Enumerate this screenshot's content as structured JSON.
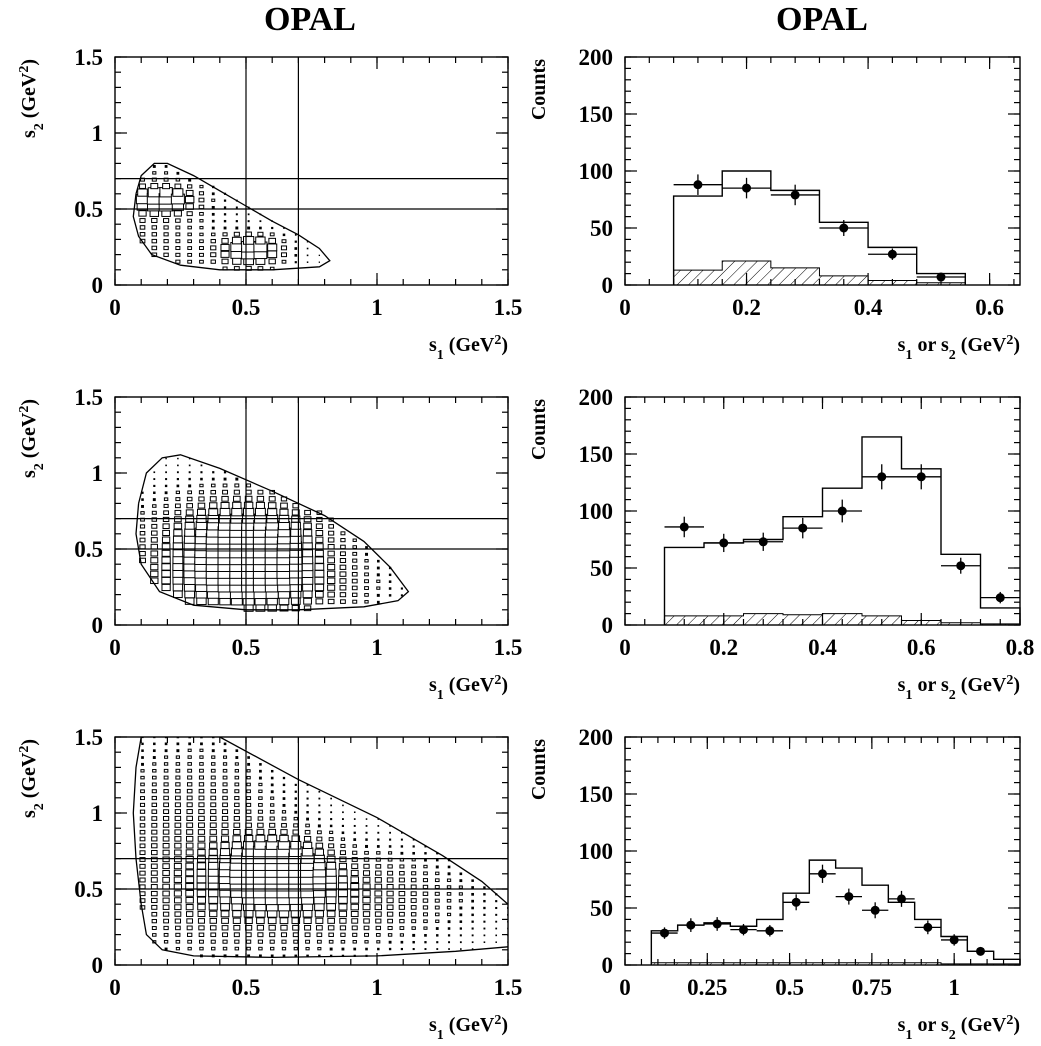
{
  "columns": [
    {
      "title": "OPAL"
    },
    {
      "title": "OPAL"
    }
  ],
  "chart_data": [
    {
      "type": "scatter",
      "subtype": "2d-box-histogram",
      "xlabel": {
        "base": "s",
        "sub": "1",
        "unit": "(GeV",
        "sup": "2",
        "close": ")"
      },
      "ylabel": {
        "base": "s",
        "sub": "2",
        "unit": "(GeV",
        "sup": "2",
        "close": ")"
      },
      "xlim": [
        0,
        1.5
      ],
      "ylim": [
        0,
        1.5
      ],
      "xticks": [
        {
          "v": 0,
          "l": "0"
        },
        {
          "v": 0.5,
          "l": "0.5"
        },
        {
          "v": 1,
          "l": "1"
        },
        {
          "v": 1.5,
          "l": "1.5"
        }
      ],
      "yticks": [
        {
          "v": 0,
          "l": "0"
        },
        {
          "v": 0.5,
          "l": "0.5"
        },
        {
          "v": 1,
          "l": "1"
        },
        {
          "v": 1.5,
          "l": "1.5"
        }
      ],
      "cuts_x": [
        0.5,
        0.7
      ],
      "cuts_y": [
        0.5,
        0.7
      ],
      "boundary": [
        [
          0.08,
          0.6
        ],
        [
          0.1,
          0.72
        ],
        [
          0.15,
          0.8
        ],
        [
          0.2,
          0.8
        ],
        [
          0.3,
          0.72
        ],
        [
          0.4,
          0.62
        ],
        [
          0.5,
          0.52
        ],
        [
          0.6,
          0.42
        ],
        [
          0.7,
          0.33
        ],
        [
          0.78,
          0.24
        ],
        [
          0.82,
          0.16
        ],
        [
          0.78,
          0.12
        ],
        [
          0.6,
          0.1
        ],
        [
          0.4,
          0.1
        ],
        [
          0.25,
          0.13
        ],
        [
          0.14,
          0.2
        ],
        [
          0.09,
          0.32
        ],
        [
          0.07,
          0.45
        ],
        [
          0.08,
          0.6
        ]
      ],
      "density": [
        {
          "x": 0.05,
          "y": 0.05,
          "sx": 0.25,
          "sy": 0.6,
          "w": 0.3
        },
        {
          "x": 0.18,
          "y": 0.55,
          "sx": 0.08,
          "sy": 0.06,
          "w": 1.0
        },
        {
          "x": 0.52,
          "y": 0.22,
          "sx": 0.08,
          "sy": 0.07,
          "w": 1.0
        }
      ]
    },
    {
      "type": "bar",
      "subtype": "histogram-with-points",
      "xlabel": {
        "base": "s",
        "sub": "1",
        "mid": " or s",
        "sub2": "2",
        "unit": " (GeV",
        "sup": "2",
        "close": ")"
      },
      "ylabel": {
        "text": "Counts"
      },
      "xlim": [
        0,
        0.65
      ],
      "ylim": [
        0,
        200
      ],
      "xticks": [
        {
          "v": 0,
          "l": "0"
        },
        {
          "v": 0.2,
          "l": "0.2"
        },
        {
          "v": 0.4,
          "l": "0.4"
        },
        {
          "v": 0.6,
          "l": "0.6"
        }
      ],
      "yticks": [
        {
          "v": 0,
          "l": "0"
        },
        {
          "v": 50,
          "l": "50"
        },
        {
          "v": 100,
          "l": "100"
        },
        {
          "v": 150,
          "l": "150"
        },
        {
          "v": 200,
          "l": "200"
        }
      ],
      "bins": [
        0.08,
        0.16,
        0.24,
        0.32,
        0.4,
        0.48,
        0.56
      ],
      "mc": [
        78,
        100,
        83,
        55,
        33,
        10
      ],
      "background": [
        13,
        21,
        15,
        8,
        4,
        2
      ],
      "data_x": [
        0.12,
        0.2,
        0.28,
        0.36,
        0.44,
        0.52
      ],
      "data_y": [
        88,
        85,
        79,
        50,
        27,
        7
      ],
      "data_err": [
        9,
        9,
        9,
        7,
        5,
        3
      ]
    },
    {
      "type": "scatter",
      "subtype": "2d-box-histogram",
      "xlabel": {
        "base": "s",
        "sub": "1",
        "unit": "(GeV",
        "sup": "2",
        "close": ")"
      },
      "ylabel": {
        "base": "s",
        "sub": "2",
        "unit": "(GeV",
        "sup": "2",
        "close": ")"
      },
      "xlim": [
        0,
        1.5
      ],
      "ylim": [
        0,
        1.5
      ],
      "xticks": [
        {
          "v": 0,
          "l": "0"
        },
        {
          "v": 0.5,
          "l": "0.5"
        },
        {
          "v": 1,
          "l": "1"
        },
        {
          "v": 1.5,
          "l": "1.5"
        }
      ],
      "yticks": [
        {
          "v": 0,
          "l": "0"
        },
        {
          "v": 0.5,
          "l": "0.5"
        },
        {
          "v": 1,
          "l": "1"
        },
        {
          "v": 1.5,
          "l": "1.5"
        }
      ],
      "cuts_x": [
        0.5,
        0.7
      ],
      "cuts_y": [
        0.5,
        0.7
      ],
      "boundary": [
        [
          0.09,
          0.8
        ],
        [
          0.12,
          1.0
        ],
        [
          0.18,
          1.1
        ],
        [
          0.25,
          1.12
        ],
        [
          0.4,
          1.03
        ],
        [
          0.6,
          0.88
        ],
        [
          0.8,
          0.72
        ],
        [
          0.95,
          0.55
        ],
        [
          1.05,
          0.38
        ],
        [
          1.12,
          0.22
        ],
        [
          1.08,
          0.16
        ],
        [
          0.95,
          0.12
        ],
        [
          0.7,
          0.1
        ],
        [
          0.5,
          0.1
        ],
        [
          0.3,
          0.13
        ],
        [
          0.17,
          0.22
        ],
        [
          0.1,
          0.4
        ],
        [
          0.08,
          0.6
        ],
        [
          0.09,
          0.8
        ]
      ],
      "density": [
        {
          "x": 0.1,
          "y": 0.1,
          "sx": 0.4,
          "sy": 0.4,
          "w": 0.25
        },
        {
          "x": 0.5,
          "y": 0.55,
          "sx": 0.2,
          "sy": 0.2,
          "w": 1.0
        },
        {
          "x": 0.55,
          "y": 0.25,
          "sx": 0.25,
          "sy": 0.15,
          "w": 0.6
        }
      ]
    },
    {
      "type": "bar",
      "subtype": "histogram-with-points",
      "xlabel": {
        "base": "s",
        "sub": "1",
        "mid": " or s",
        "sub2": "2",
        "unit": " (GeV",
        "sup": "2",
        "close": ")"
      },
      "ylabel": {
        "text": "Counts"
      },
      "xlim": [
        0,
        0.8
      ],
      "ylim": [
        0,
        200
      ],
      "xticks": [
        {
          "v": 0,
          "l": "0"
        },
        {
          "v": 0.2,
          "l": "0.2"
        },
        {
          "v": 0.4,
          "l": "0.4"
        },
        {
          "v": 0.6,
          "l": "0.6"
        },
        {
          "v": 0.8,
          "l": "0.8"
        }
      ],
      "yticks": [
        {
          "v": 0,
          "l": "0"
        },
        {
          "v": 50,
          "l": "50"
        },
        {
          "v": 100,
          "l": "100"
        },
        {
          "v": 150,
          "l": "150"
        },
        {
          "v": 200,
          "l": "200"
        }
      ],
      "bins": [
        0.08,
        0.16,
        0.24,
        0.32,
        0.4,
        0.48,
        0.56,
        0.64,
        0.72,
        0.8
      ],
      "mc": [
        68,
        72,
        75,
        95,
        120,
        165,
        137,
        62,
        15
      ],
      "background": [
        8,
        8,
        10,
        9,
        10,
        8,
        4,
        2,
        1
      ],
      "data_x": [
        0.12,
        0.2,
        0.28,
        0.36,
        0.44,
        0.52,
        0.6,
        0.68,
        0.76
      ],
      "data_y": [
        86,
        72,
        73,
        85,
        100,
        130,
        130,
        52,
        24
      ],
      "data_err": [
        9,
        8,
        8,
        9,
        10,
        11,
        11,
        7,
        5
      ]
    },
    {
      "type": "scatter",
      "subtype": "2d-box-histogram",
      "xlabel": {
        "base": "s",
        "sub": "1",
        "unit": "(GeV",
        "sup": "2",
        "close": ")"
      },
      "ylabel": {
        "base": "s",
        "sub": "2",
        "unit": "(GeV",
        "sup": "2",
        "close": ")"
      },
      "xlim": [
        0,
        1.5
      ],
      "ylim": [
        0,
        1.5
      ],
      "xticks": [
        {
          "v": 0,
          "l": "0"
        },
        {
          "v": 0.5,
          "l": "0.5"
        },
        {
          "v": 1,
          "l": "1"
        },
        {
          "v": 1.5,
          "l": "1.5"
        }
      ],
      "yticks": [
        {
          "v": 0,
          "l": "0"
        },
        {
          "v": 0.5,
          "l": "0.5"
        },
        {
          "v": 1,
          "l": "1"
        },
        {
          "v": 1.5,
          "l": "1.5"
        }
      ],
      "cuts_x": [
        0.5,
        0.7
      ],
      "cuts_y": [
        0.5,
        0.7
      ],
      "boundary": [
        [
          0.1,
          1.5
        ],
        [
          0.08,
          1.3
        ],
        [
          0.07,
          1.0
        ],
        [
          0.08,
          0.7
        ],
        [
          0.1,
          0.4
        ],
        [
          0.12,
          0.2
        ],
        [
          0.18,
          0.1
        ],
        [
          0.3,
          0.06
        ],
        [
          0.6,
          0.05
        ],
        [
          1.0,
          0.06
        ],
        [
          1.3,
          0.09
        ],
        [
          1.5,
          0.12
        ]
      ],
      "boundary_upper": [
        [
          0.4,
          1.5
        ],
        [
          0.7,
          1.22
        ],
        [
          1.0,
          0.97
        ],
        [
          1.25,
          0.72
        ],
        [
          1.4,
          0.55
        ],
        [
          1.5,
          0.4
        ]
      ],
      "density": [
        {
          "x": 0.3,
          "y": 0.8,
          "sx": 0.25,
          "sy": 0.45,
          "w": 0.35
        },
        {
          "x": 0.62,
          "y": 0.62,
          "sx": 0.12,
          "sy": 0.14,
          "w": 1.0
        },
        {
          "x": 0.75,
          "y": 0.45,
          "sx": 0.35,
          "sy": 0.2,
          "w": 0.55
        }
      ]
    },
    {
      "type": "bar",
      "subtype": "histogram-with-points",
      "xlabel": {
        "base": "s",
        "sub": "1",
        "mid": " or s",
        "sub2": "2",
        "unit": " (GeV",
        "sup": "2",
        "close": ")"
      },
      "ylabel": {
        "text": "Counts"
      },
      "xlim": [
        0,
        1.2
      ],
      "ylim": [
        0,
        200
      ],
      "xticks": [
        {
          "v": 0,
          "l": "0"
        },
        {
          "v": 0.25,
          "l": "0.25"
        },
        {
          "v": 0.5,
          "l": "0.5"
        },
        {
          "v": 0.75,
          "l": "0.75"
        },
        {
          "v": 1.0,
          "l": "1"
        }
      ],
      "yticks": [
        {
          "v": 0,
          "l": "0"
        },
        {
          "v": 50,
          "l": "50"
        },
        {
          "v": 100,
          "l": "100"
        },
        {
          "v": 150,
          "l": "150"
        },
        {
          "v": 200,
          "l": "200"
        }
      ],
      "bins": [
        0.08,
        0.16,
        0.24,
        0.32,
        0.4,
        0.48,
        0.56,
        0.64,
        0.72,
        0.8,
        0.88,
        0.96,
        1.04,
        1.12,
        1.2
      ],
      "mc": [
        30,
        35,
        37,
        34,
        40,
        63,
        92,
        85,
        70,
        55,
        40,
        25,
        12,
        5
      ],
      "background": [
        2,
        2,
        2,
        2,
        2,
        2,
        2,
        2,
        2,
        2,
        2,
        1,
        1,
        1
      ],
      "data_x": [
        0.12,
        0.2,
        0.28,
        0.36,
        0.44,
        0.52,
        0.6,
        0.68,
        0.76,
        0.84,
        0.92,
        1.0,
        1.08
      ],
      "data_y": [
        28,
        35,
        36,
        31,
        30,
        55,
        80,
        60,
        48,
        58,
        33,
        22,
        12
      ],
      "data_err": [
        5,
        6,
        6,
        5,
        5,
        7,
        8,
        7,
        7,
        7,
        6,
        5,
        3
      ]
    }
  ]
}
